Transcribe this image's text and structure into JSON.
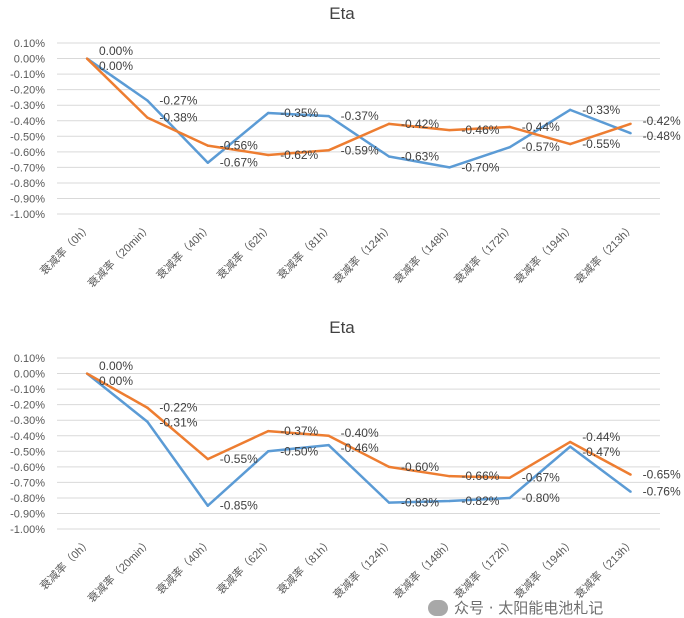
{
  "chart_data": [
    {
      "type": "line",
      "title": "Eta",
      "categories": [
        "衰减率（0h）",
        "衰减率（20min）",
        "衰减率（40h）",
        "衰减率（62h）",
        "衰减率（81h）",
        "衰减率（124h）",
        "衰减率（148h）",
        "衰减率（172h）",
        "衰减率（194h）",
        "衰减率（213h）"
      ],
      "yticks": [
        "0.10%",
        "0.00%",
        "-0.10%",
        "-0.20%",
        "-0.30%",
        "-0.40%",
        "-0.50%",
        "-0.60%",
        "-0.70%",
        "-0.80%",
        "-0.90%",
        "-1.00%"
      ],
      "ylim": [
        -1.0,
        0.1
      ],
      "grid": true,
      "series": [
        {
          "name": "blue",
          "color": "#5B9BD5",
          "values": [
            0.0,
            -0.27,
            -0.67,
            -0.35,
            -0.37,
            -0.63,
            -0.7,
            -0.57,
            -0.33,
            -0.48
          ]
        },
        {
          "name": "orange",
          "color": "#ED7D31",
          "values": [
            0.0,
            -0.38,
            -0.56,
            -0.62,
            -0.59,
            -0.42,
            -0.46,
            -0.44,
            -0.55,
            -0.42
          ]
        }
      ]
    },
    {
      "type": "line",
      "title": "Eta",
      "categories": [
        "衰减率（0h）",
        "衰减率（20min）",
        "衰减率（40h）",
        "衰减率（62h）",
        "衰减率（81h）",
        "衰减率（124h）",
        "衰减率（148h）",
        "衰减率（172h）",
        "衰减率（194h）",
        "衰减率（213h）"
      ],
      "yticks": [
        "0.10%",
        "0.00%",
        "-0.10%",
        "-0.20%",
        "-0.30%",
        "-0.40%",
        "-0.50%",
        "-0.60%",
        "-0.70%",
        "-0.80%",
        "-0.90%",
        "-1.00%"
      ],
      "ylim": [
        -1.0,
        0.1
      ],
      "grid": true,
      "series": [
        {
          "name": "blue",
          "color": "#5B9BD5",
          "values": [
            0.0,
            -0.31,
            -0.85,
            -0.5,
            -0.46,
            -0.83,
            -0.82,
            -0.8,
            -0.47,
            -0.76
          ]
        },
        {
          "name": "orange",
          "color": "#ED7D31",
          "values": [
            0.0,
            -0.22,
            -0.55,
            -0.37,
            -0.4,
            -0.6,
            -0.66,
            -0.67,
            -0.44,
            -0.65
          ]
        }
      ]
    }
  ],
  "watermark": "众号 · 太阳能电池札记"
}
